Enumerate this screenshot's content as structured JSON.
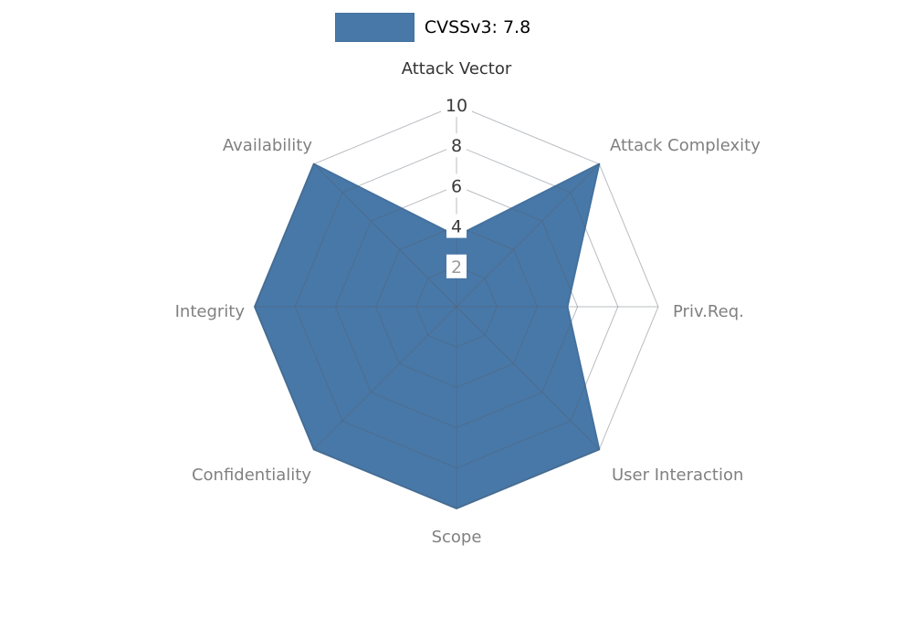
{
  "figure": {
    "background": "#ffffff"
  },
  "chart_data": {
    "type": "radar",
    "title": "",
    "legend": "CVSSv3: 7.8",
    "legend_position": "top-center",
    "categories": [
      "Attack Vector",
      "Attack Complexity",
      "Priv.Req.",
      "User Interaction",
      "Scope",
      "Confidentiality",
      "Integrity",
      "Availability"
    ],
    "series": [
      {
        "name": "CVSSv3: 7.8",
        "values": [
          3.5,
          10,
          5.5,
          10,
          10,
          10,
          10,
          10
        ]
      }
    ],
    "axis_range": [
      0,
      10
    ],
    "ticks": [
      2,
      4,
      6,
      8,
      10
    ],
    "grid": true,
    "colors": {
      "fill": "#4878a8",
      "stroke": "#43729f",
      "grid": "#555f6b",
      "axis_label": "#808080",
      "axis_label_first": "#333333",
      "tick": "#3a3a3a",
      "tick_low": "#9b9b9b",
      "legend_text": "#000000",
      "tick_box": "#ffffff"
    }
  }
}
